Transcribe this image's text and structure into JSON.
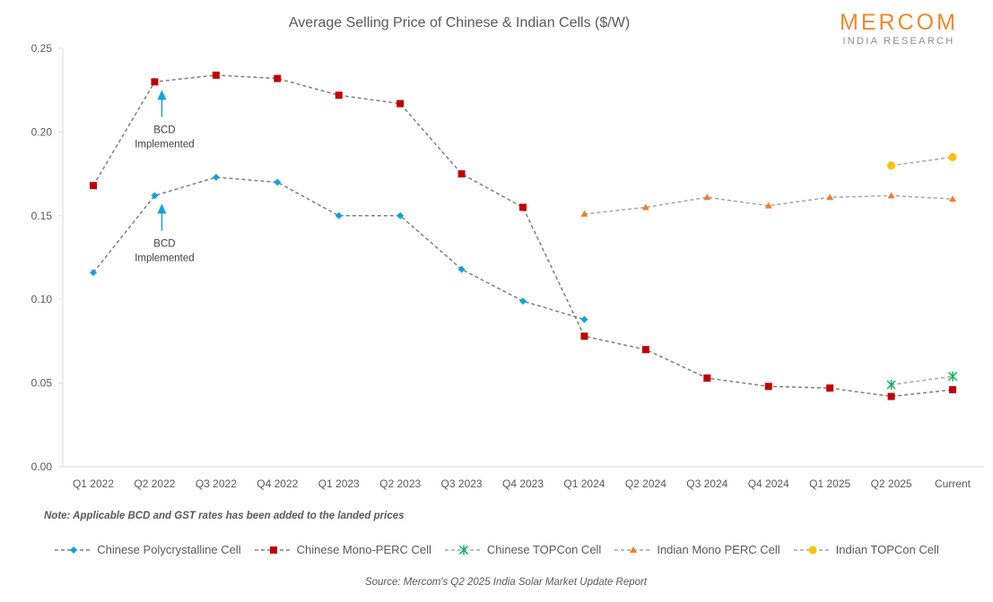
{
  "brand": {
    "name": "MERCOM",
    "subtitle": "INDIA RESEARCH",
    "accent_color": "#ea8a2c"
  },
  "note": "Note: Applicable BCD and GST rates has been added to the landed prices",
  "source": "Source: Mercom's Q2 2025 India Solar Market Update Report",
  "chart_data": {
    "type": "line",
    "title": "Average Selling Price of Chinese & Indian Cells ($/W)",
    "xlabel": "",
    "ylabel": "",
    "ylim": [
      0,
      0.25
    ],
    "yticks": [
      0.0,
      0.05,
      0.1,
      0.15,
      0.2,
      0.25
    ],
    "ytick_labels": [
      "0.00",
      "0.05",
      "0.10",
      "0.15",
      "0.20",
      "0.25"
    ],
    "grid": false,
    "legend_position": "bottom",
    "categories": [
      "Q1 2022",
      "Q2 2022",
      "Q3 2022",
      "Q4 2022",
      "Q1 2023",
      "Q2 2023",
      "Q3 2023",
      "Q4 2023",
      "Q1 2024",
      "Q2 2024",
      "Q3 2024",
      "Q4 2024",
      "Q1 2025",
      "Q2 2025",
      "Current"
    ],
    "series": [
      {
        "name": "Chinese Polycrystalline Cell",
        "marker": "diamond",
        "color": "#0fa3dc",
        "line_color": "#7f7f7f",
        "values": [
          0.116,
          0.162,
          0.173,
          0.17,
          0.15,
          0.15,
          0.118,
          0.099,
          0.088,
          null,
          null,
          null,
          null,
          null,
          null
        ]
      },
      {
        "name": "Chinese Mono-PERC Cell",
        "marker": "square",
        "color": "#c00000",
        "line_color": "#7f7f7f",
        "values": [
          0.168,
          0.23,
          0.234,
          0.232,
          0.222,
          0.217,
          0.175,
          0.155,
          0.078,
          0.07,
          0.053,
          0.048,
          0.047,
          0.042,
          0.046
        ]
      },
      {
        "name": "Chinese TOPCon Cell",
        "marker": "star",
        "color": "#00b050",
        "line_color": "#a6a6a6",
        "values": [
          null,
          null,
          null,
          null,
          null,
          null,
          null,
          null,
          null,
          null,
          null,
          null,
          null,
          0.049,
          0.054
        ]
      },
      {
        "name": "Indian Mono PERC Cell",
        "marker": "triangle",
        "color": "#ed7d31",
        "line_color": "#a6a6a6",
        "values": [
          null,
          null,
          null,
          null,
          null,
          null,
          null,
          null,
          0.151,
          0.155,
          0.161,
          0.156,
          0.161,
          0.162,
          0.16
        ]
      },
      {
        "name": "Indian TOPCon Cell",
        "marker": "circle",
        "color": "#ffc000",
        "line_color": "#a6a6a6",
        "values": [
          null,
          null,
          null,
          null,
          null,
          null,
          null,
          null,
          null,
          null,
          null,
          null,
          null,
          0.18,
          0.185
        ]
      }
    ],
    "annotations": [
      {
        "text_line1": "BCD",
        "text_line2": "Implemented",
        "category": "Q2 2022",
        "series": "Chinese Mono-PERC Cell",
        "arrow_color": "#0fa3dc"
      },
      {
        "text_line1": "BCD",
        "text_line2": "Implemented",
        "category": "Q2 2022",
        "series": "Chinese Polycrystalline Cell",
        "arrow_color": "#0fa3dc"
      }
    ]
  }
}
